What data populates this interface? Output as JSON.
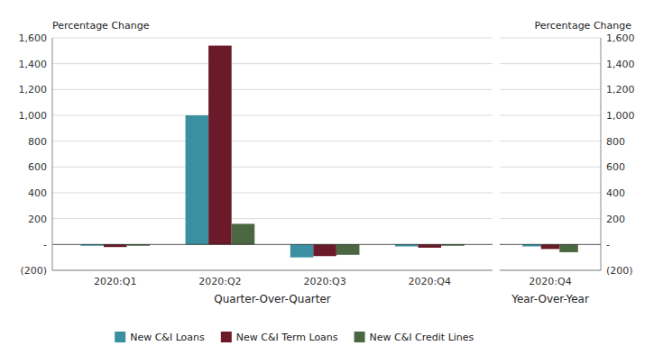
{
  "chart_data": [
    {
      "type": "bar",
      "categories": [
        "2020:Q1",
        "2020:Q2",
        "2020:Q3",
        "2020:Q4"
      ],
      "series": [
        {
          "name": "New C&I Loans",
          "color": "#3a8fa0",
          "values": [
            -10,
            1000,
            -100,
            -15
          ]
        },
        {
          "name": "New C&I Term Loans",
          "color": "#6b1a2a",
          "values": [
            -20,
            1540,
            -90,
            -25
          ]
        },
        {
          "name": "New C&I Credit Lines",
          "color": "#4a6741",
          "values": [
            -10,
            160,
            -80,
            -10
          ]
        }
      ],
      "ylim": [
        -200,
        1600
      ],
      "yticks": [
        {
          "value": -200,
          "label": "(200)"
        },
        {
          "value": 0,
          "label": "-"
        },
        200,
        400,
        600,
        800,
        {
          "value": 1000,
          "label": "1,000"
        },
        {
          "value": 1200,
          "label": "1,200"
        },
        {
          "value": 1400,
          "label": "1,400"
        },
        {
          "value": 1600,
          "label": "1,600"
        }
      ],
      "y_label": "Percentage Change",
      "x_label": "Quarter-Over-Quarter",
      "grid": true,
      "legend": "bottom"
    },
    {
      "type": "bar",
      "categories": [
        "2020:Q4"
      ],
      "series": [
        {
          "color": "#3a8fa0",
          "values": [
            -15
          ]
        },
        {
          "color": "#6b1a2a",
          "values": [
            -35
          ]
        },
        {
          "color": "#4a6741",
          "values": [
            -60
          ]
        }
      ],
      "ylim": [
        -200,
        1600
      ],
      "yticks": [
        {
          "value": -200,
          "label": "(200)"
        },
        {
          "value": 0,
          "label": "-"
        },
        200,
        400,
        600,
        800,
        {
          "value": 1000,
          "label": "1,000"
        },
        {
          "value": 1200,
          "label": "1,200"
        },
        {
          "value": 1400,
          "label": "1,400"
        },
        {
          "value": 1600,
          "label": "1,600"
        }
      ],
      "y_label": "Percentage Change",
      "x_label": "Year-Over-Year",
      "grid": true
    }
  ]
}
